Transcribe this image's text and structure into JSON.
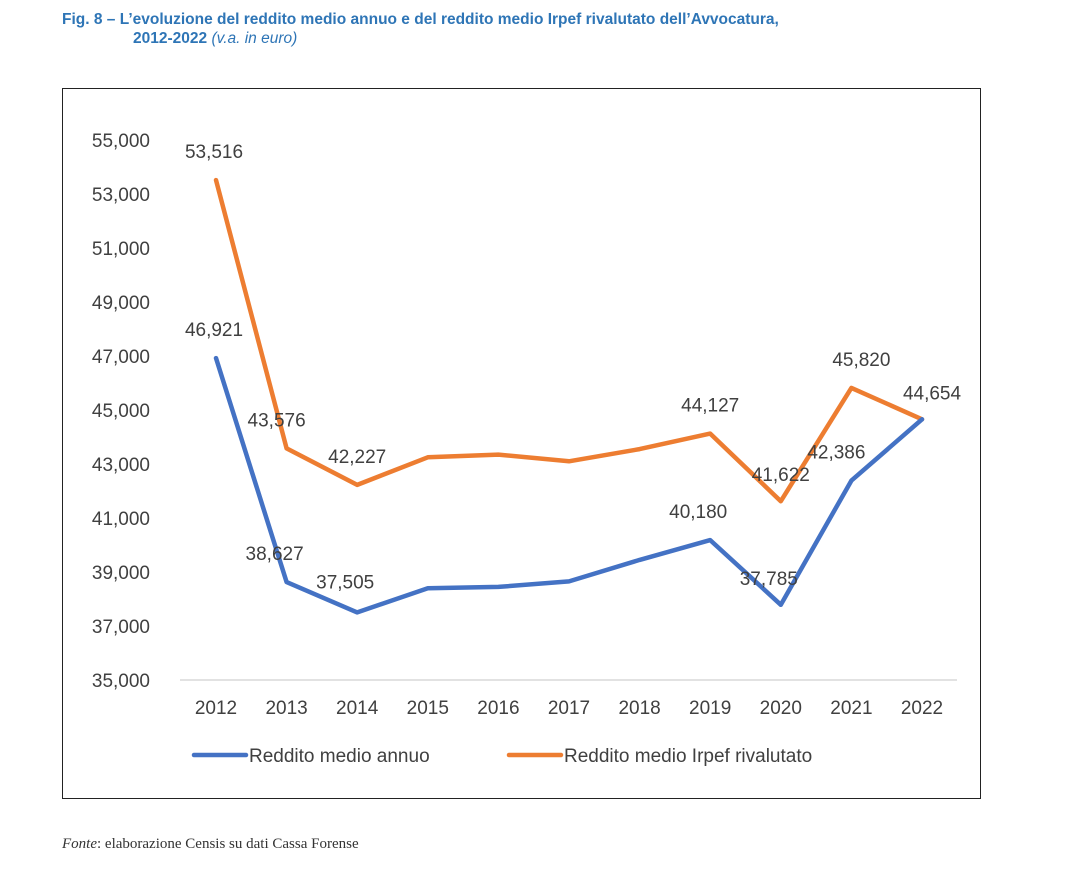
{
  "title": {
    "line1": "Fig. 8 – L’evoluzione del reddito medio annuo e del reddito medio Irpef rivalutato dell’Avvocatura,",
    "line2": "2012-2022",
    "units": "(v.a. in euro)"
  },
  "source": {
    "label": "Fonte",
    "text": ": elaborazione Censis su dati Cassa Forense"
  },
  "chart_data": {
    "type": "line",
    "x": [
      "2012",
      "2013",
      "2014",
      "2015",
      "2016",
      "2017",
      "2018",
      "2019",
      "2020",
      "2021",
      "2022"
    ],
    "ylim": [
      35000,
      55000
    ],
    "yticks": [
      "35,000",
      "37,000",
      "39,000",
      "41,000",
      "43,000",
      "45,000",
      "47,000",
      "49,000",
      "51,000",
      "53,000",
      "55,000"
    ],
    "grid": false,
    "legend": "bottom",
    "series": [
      {
        "name": "Reddito medio annuo",
        "color": "#4472c4",
        "values": [
          46921,
          38627,
          37505,
          38400,
          38450,
          38650,
          39450,
          40180,
          37785,
          42386,
          44654
        ],
        "labels": [
          "46,921",
          "38,627",
          "37,505",
          null,
          null,
          null,
          null,
          "40,180",
          "37,785",
          "42,386",
          null
        ]
      },
      {
        "name": "Reddito medio Irpef rivalutato",
        "color": "#ed7d31",
        "values": [
          53516,
          43576,
          42227,
          43250,
          43350,
          43100,
          43550,
          44127,
          41622,
          45820,
          44654
        ],
        "labels": [
          "53,516",
          "43,576",
          "42,227",
          null,
          null,
          null,
          null,
          "44,127",
          "41,622",
          "45,820",
          "44,654"
        ]
      }
    ]
  }
}
